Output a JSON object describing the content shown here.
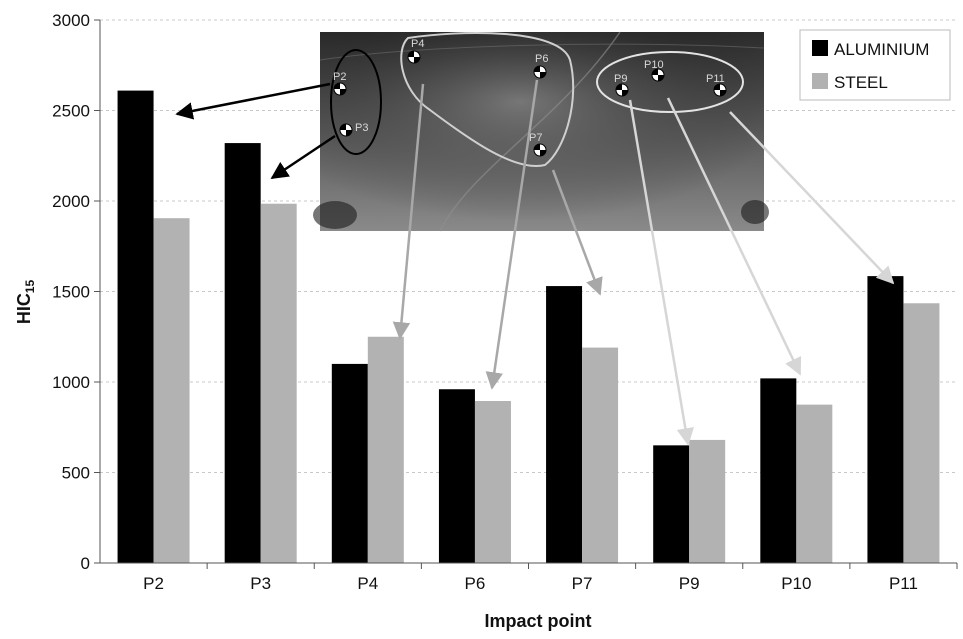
{
  "chart_data": {
    "type": "bar",
    "categories": [
      "P2",
      "P3",
      "P4",
      "P6",
      "P7",
      "P9",
      "P10",
      "P11"
    ],
    "series": [
      {
        "name": "ALUMINIUM",
        "color": "#000000",
        "values": [
          2610,
          2320,
          1100,
          960,
          1530,
          650,
          1020,
          1585
        ]
      },
      {
        "name": "STEEL",
        "color": "#b2b2b2",
        "values": [
          1905,
          1985,
          1250,
          895,
          1190,
          680,
          875,
          1435
        ]
      }
    ],
    "xlabel": "Impact point",
    "ylabel": {
      "main": "HIC",
      "sub": "15"
    },
    "ylim": [
      0,
      3000
    ],
    "yticks": [
      0,
      500,
      1000,
      1500,
      2000,
      2500,
      3000
    ],
    "grid": true,
    "legend_position": "top-right",
    "inset_photo": {
      "description_icon": "car-bonnet-photo",
      "point_labels": [
        "P2",
        "P3",
        "P4",
        "P6",
        "P7",
        "P9",
        "P10",
        "P11"
      ]
    }
  }
}
